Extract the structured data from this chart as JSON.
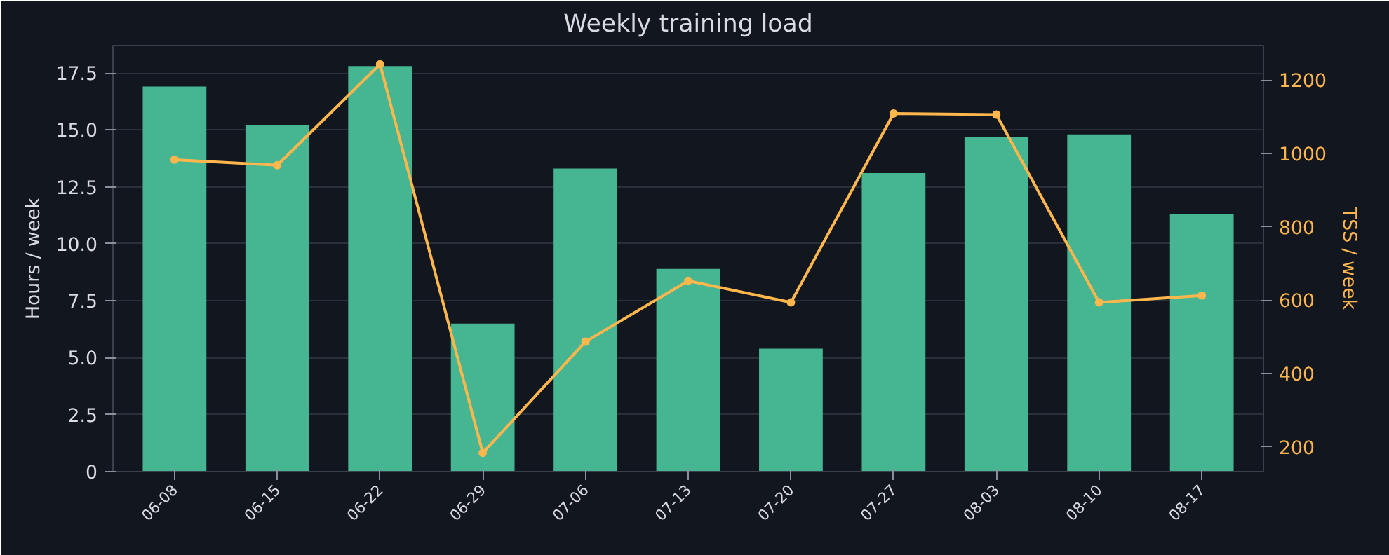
{
  "chart_data": {
    "type": "bar",
    "title": "Weekly training load",
    "ylabel": "Hours / week",
    "y2label": "TSS / week",
    "categories": [
      "06-08",
      "06-15",
      "06-22",
      "06-29",
      "07-06",
      "07-13",
      "07-20",
      "07-27",
      "08-03",
      "08-10",
      "08-17"
    ],
    "series": [
      {
        "color": "#45b592",
        "values": [
          16.9,
          15.2,
          17.8,
          6.5,
          13.3,
          8.9,
          5.4,
          13.1,
          14.7,
          14.8,
          11.3
        ]
      },
      {
        "type": "line",
        "axis": "y2",
        "color": "#ffb74d",
        "marker": "circle",
        "values": [
          983,
          968,
          1243,
          184,
          487,
          653,
          594,
          1109,
          1106,
          594,
          613
        ]
      }
    ],
    "ylim": [
      0,
      18.7
    ],
    "yticks": [
      0,
      {
        "value": 2.5,
        "label": "2.5"
      },
      {
        "value": 5,
        "label": "5.0"
      },
      {
        "value": 7.5,
        "label": "7.5"
      },
      {
        "value": 10,
        "label": "10.0"
      },
      {
        "value": 12.5,
        "label": "12.5"
      },
      {
        "value": 15,
        "label": "15.0"
      },
      {
        "value": 17.5,
        "label": "17.5"
      }
    ],
    "y2lim": [
      133,
      1294
    ],
    "y2ticks": [
      200,
      400,
      600,
      800,
      1000,
      1200
    ],
    "grid": "y"
  }
}
